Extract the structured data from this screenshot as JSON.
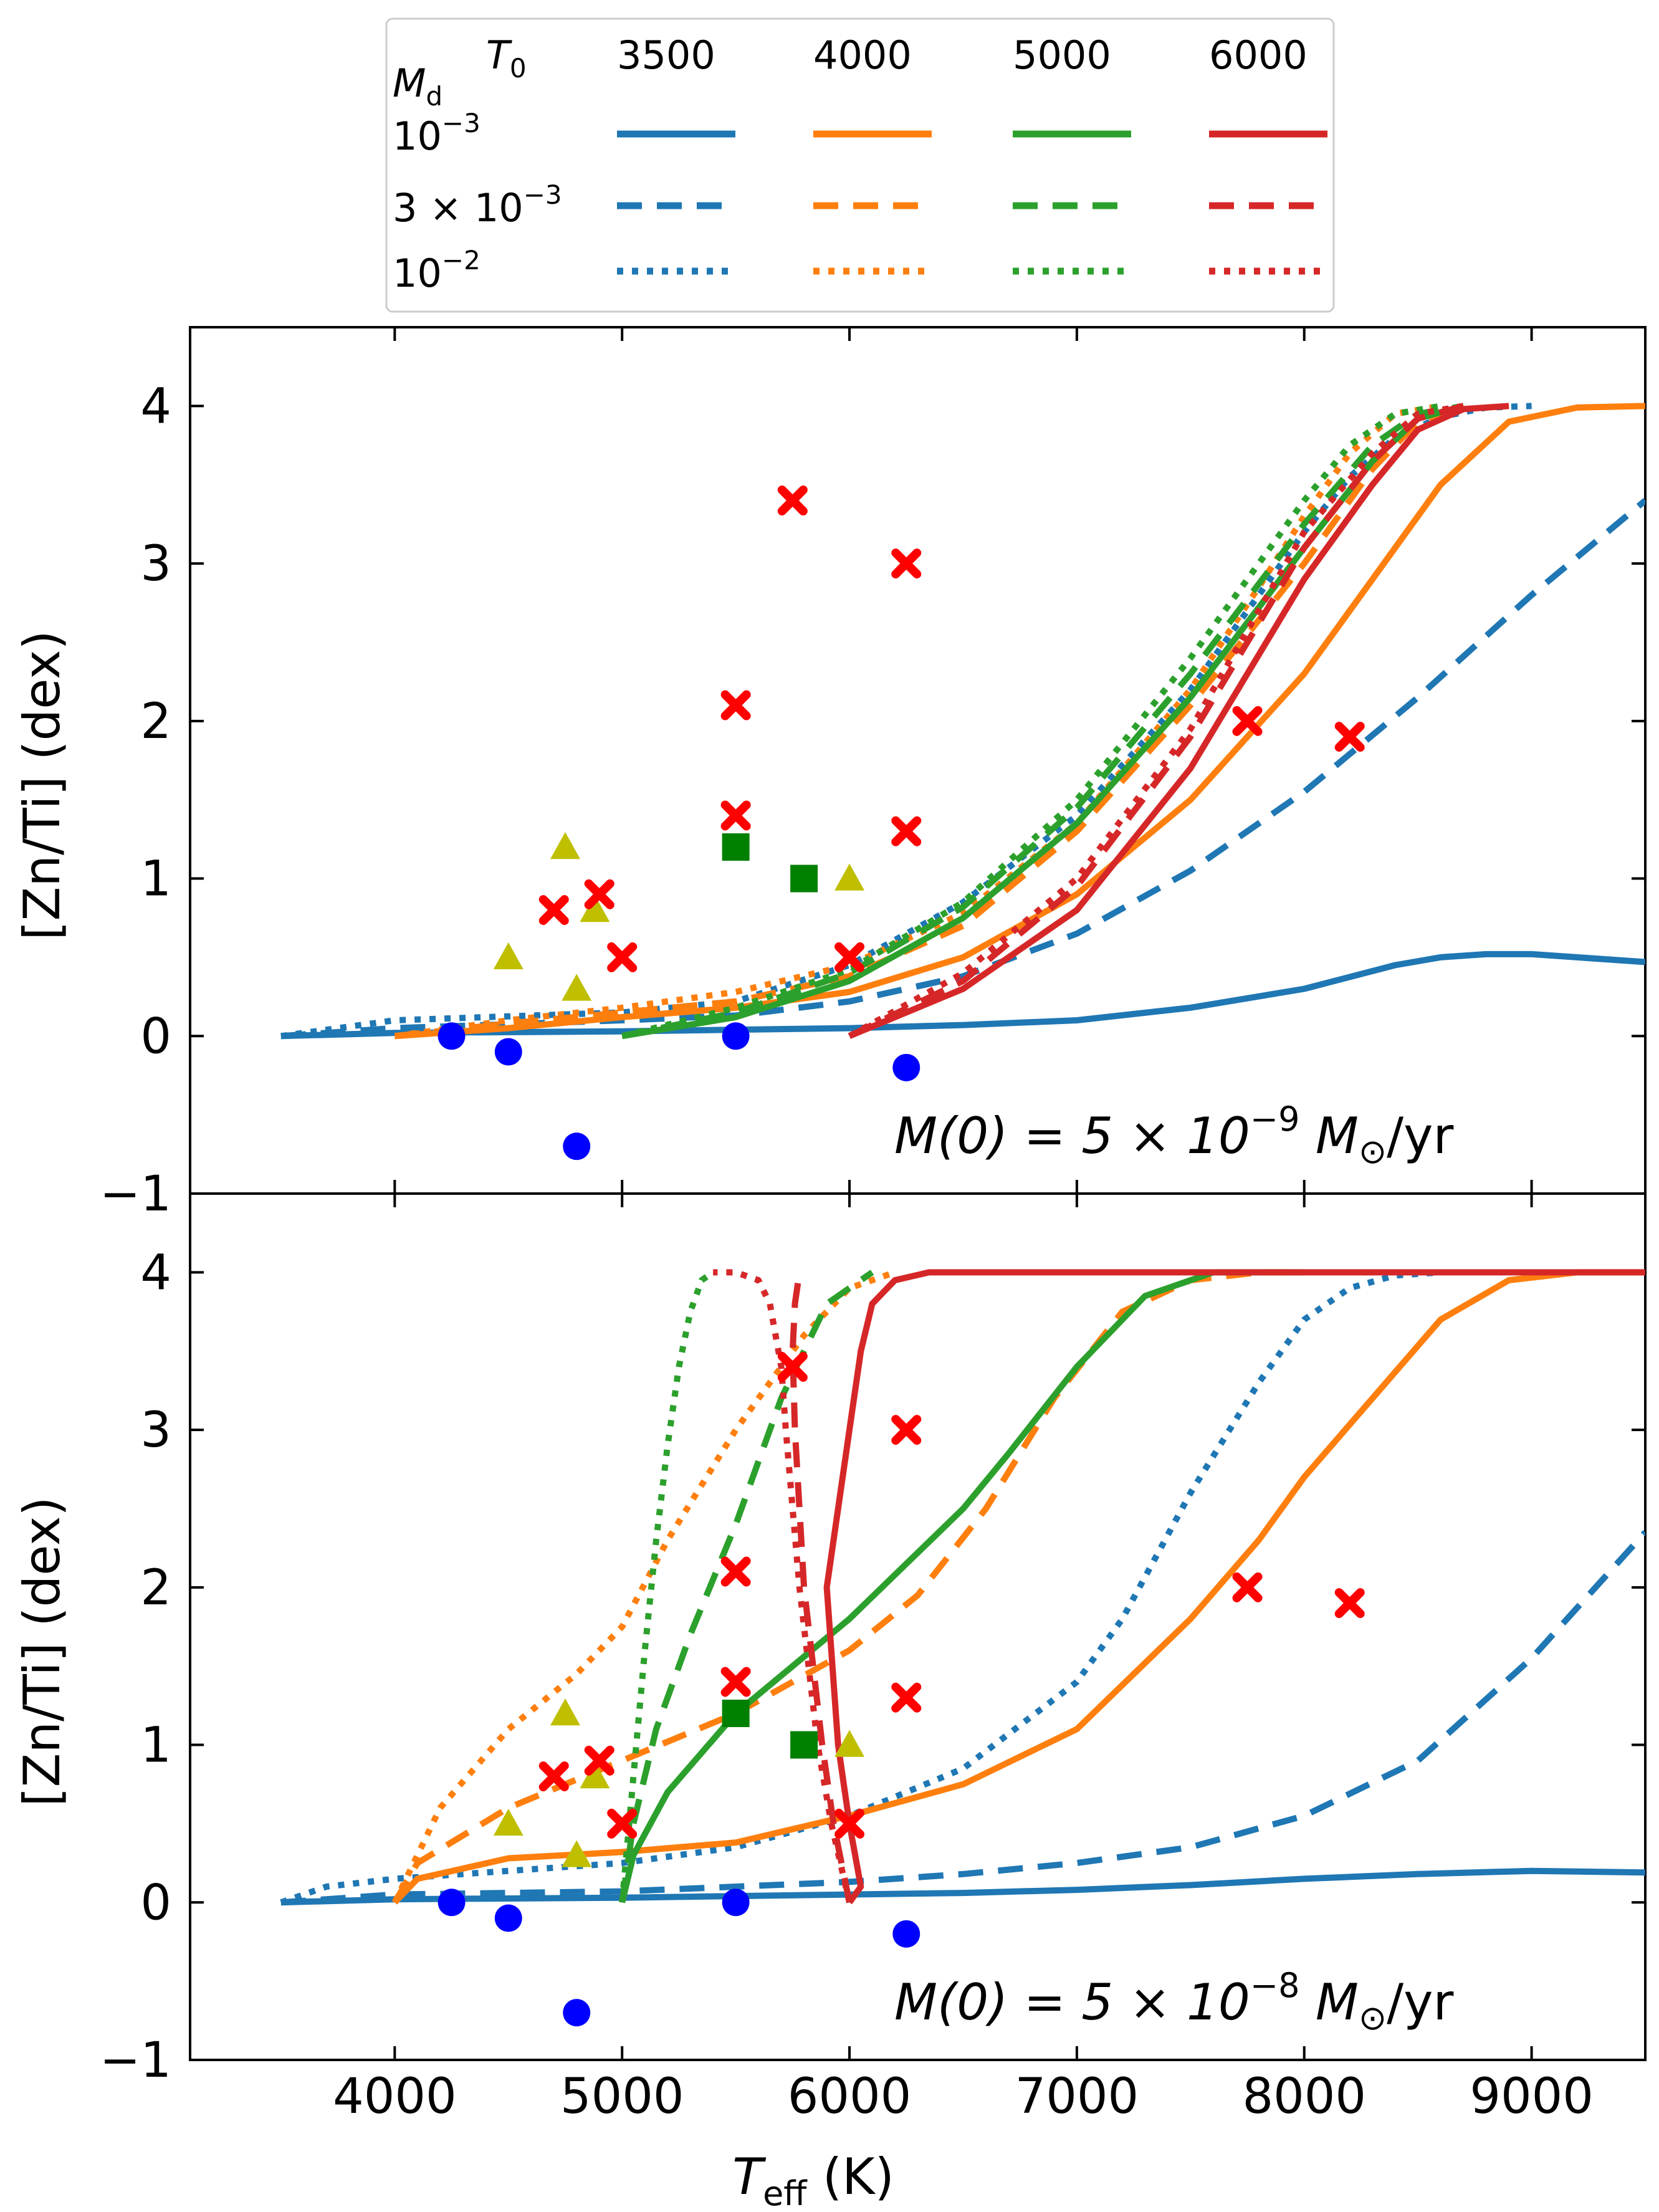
{
  "colors": {
    "T3500": "#1f77b4",
    "T4000": "#ff7f0e",
    "T5000": "#2ca02c",
    "T6000": "#d62728",
    "cross": "#ff0000",
    "circle": "#0000ff",
    "triangle": "#bfbf00",
    "square": "#008000"
  },
  "legend": {
    "md_label": "M",
    "md_sub": "d",
    "t0_label": "T",
    "t0_sub": "0",
    "columns": [
      "3500",
      "4000",
      "5000",
      "6000"
    ],
    "rows": [
      {
        "label_base": "10",
        "label_exp": "−3",
        "prefix": "",
        "style": "solid"
      },
      {
        "label_base": "10",
        "label_exp": "−3",
        "prefix": "3 × ",
        "style": "dashed"
      },
      {
        "label_base": "10",
        "label_exp": "−2",
        "prefix": "",
        "style": "dotted"
      }
    ]
  },
  "chart_data": [
    {
      "type": "line",
      "panel": "top",
      "annotation": {
        "prefix": "M(0) = 5 × 10",
        "exp": "−9",
        "suffix": " M",
        "sub": "⊙",
        "tail": "/yr"
      },
      "xlabel": "T_eff (K)",
      "ylabel": "[Zn/Ti] (dex)",
      "xlim": [
        3100,
        9500
      ],
      "ylim": [
        -1,
        4.5
      ],
      "xticks": [
        4000,
        5000,
        6000,
        7000,
        8000,
        9000
      ],
      "yticks": [
        -1,
        0,
        1,
        2,
        3,
        4
      ],
      "series": [
        {
          "name": "T0=3500 Md=1e-3",
          "T0": "3500",
          "style": "solid",
          "x": [
            3500,
            4000,
            5000,
            6000,
            6500,
            7000,
            7500,
            8000,
            8400,
            8600,
            8800,
            9000,
            9200,
            9500
          ],
          "y": [
            0,
            0.02,
            0.03,
            0.05,
            0.07,
            0.1,
            0.18,
            0.3,
            0.45,
            0.5,
            0.52,
            0.52,
            0.5,
            0.47
          ]
        },
        {
          "name": "T0=3500 Md=3e-3",
          "T0": "3500",
          "style": "dashed",
          "x": [
            3500,
            4000,
            5000,
            5500,
            6000,
            6500,
            7000,
            7500,
            8000,
            8500,
            9000,
            9500
          ],
          "y": [
            0,
            0.05,
            0.1,
            0.13,
            0.22,
            0.38,
            0.65,
            1.05,
            1.55,
            2.15,
            2.8,
            3.4
          ]
        },
        {
          "name": "T0=3500 Md=1e-2",
          "T0": "3500",
          "style": "dotted",
          "x": [
            3500,
            4000,
            5000,
            5500,
            6000,
            6500,
            7000,
            7500,
            7800,
            8000,
            8200,
            8400,
            8600,
            8800,
            9000
          ],
          "y": [
            0,
            0.1,
            0.15,
            0.22,
            0.45,
            0.85,
            1.4,
            2.2,
            2.8,
            3.2,
            3.55,
            3.8,
            3.93,
            3.99,
            4.0
          ]
        },
        {
          "name": "T0=4000 Md=1e-3",
          "T0": "4000",
          "style": "solid",
          "x": [
            4000,
            4500,
            5000,
            5500,
            6000,
            6500,
            7000,
            7500,
            8000,
            8300,
            8600,
            8900,
            9200,
            9500
          ],
          "y": [
            0,
            0.05,
            0.12,
            0.18,
            0.28,
            0.5,
            0.9,
            1.5,
            2.3,
            2.9,
            3.5,
            3.9,
            3.99,
            4.0
          ]
        },
        {
          "name": "T0=4000 Md=3e-3",
          "T0": "4000",
          "style": "dashed",
          "x": [
            4000,
            4500,
            5000,
            5500,
            6000,
            6500,
            7000,
            7500,
            8000,
            8300,
            8500,
            8700
          ],
          "y": [
            0,
            0.08,
            0.15,
            0.22,
            0.38,
            0.7,
            1.3,
            2.1,
            3.0,
            3.6,
            3.9,
            4.0
          ]
        },
        {
          "name": "T0=4000 Md=1e-2",
          "T0": "4000",
          "style": "dotted",
          "x": [
            4000,
            4500,
            5000,
            5500,
            6000,
            6500,
            7000,
            7500,
            7800,
            8000,
            8200,
            8400,
            8600
          ],
          "y": [
            0,
            0.1,
            0.18,
            0.28,
            0.45,
            0.78,
            1.35,
            2.2,
            2.85,
            3.3,
            3.7,
            3.95,
            4.0
          ]
        },
        {
          "name": "T0=5000 Md=1e-3",
          "T0": "5000",
          "style": "solid",
          "x": [
            5000,
            5500,
            6000,
            6500,
            7000,
            7500,
            8000,
            8300,
            8500,
            8700
          ],
          "y": [
            0,
            0.12,
            0.35,
            0.75,
            1.35,
            2.15,
            3.1,
            3.65,
            3.92,
            4.0
          ]
        },
        {
          "name": "T0=5000 Md=3e-3",
          "T0": "5000",
          "style": "dashed",
          "x": [
            5000,
            5500,
            6000,
            6500,
            7000,
            7500,
            8000,
            8300,
            8500,
            8700
          ],
          "y": [
            0,
            0.15,
            0.4,
            0.82,
            1.45,
            2.3,
            3.25,
            3.75,
            3.95,
            4.0
          ]
        },
        {
          "name": "T0=5000 Md=1e-2",
          "T0": "5000",
          "style": "dotted",
          "x": [
            5000,
            5500,
            6000,
            6500,
            7000,
            7500,
            7800,
            8000,
            8200,
            8400,
            8600
          ],
          "y": [
            0,
            0.18,
            0.42,
            0.85,
            1.5,
            2.4,
            3.0,
            3.4,
            3.75,
            3.95,
            4.0
          ]
        },
        {
          "name": "T0=6000 Md=1e-3",
          "T0": "6000",
          "style": "solid",
          "x": [
            6000,
            6500,
            7000,
            7500,
            8000,
            8300,
            8500,
            8700,
            8900
          ],
          "y": [
            0,
            0.3,
            0.8,
            1.7,
            2.9,
            3.5,
            3.85,
            3.98,
            4.0
          ]
        },
        {
          "name": "T0=6000 Md=3e-3",
          "T0": "6000",
          "style": "dashed",
          "x": [
            6000,
            6500,
            7000,
            7500,
            8000,
            8300,
            8500,
            8700
          ],
          "y": [
            0,
            0.35,
            0.95,
            1.9,
            3.1,
            3.65,
            3.92,
            4.0
          ]
        },
        {
          "name": "T0=6000 Md=1e-2",
          "T0": "6000",
          "style": "dotted",
          "x": [
            6000,
            6500,
            7000,
            7500,
            8000,
            8300,
            8500,
            8700
          ],
          "y": [
            0,
            0.4,
            1.0,
            1.95,
            3.2,
            3.7,
            3.95,
            4.0
          ]
        }
      ]
    },
    {
      "type": "line",
      "panel": "bottom",
      "annotation": {
        "prefix": "M(0) = 5 × 10",
        "exp": "−8",
        "suffix": " M",
        "sub": "⊙",
        "tail": "/yr"
      },
      "xlabel": "T_eff (K)",
      "ylabel": "[Zn/Ti] (dex)",
      "xlim": [
        3100,
        9500
      ],
      "ylim": [
        -1,
        4.5
      ],
      "xticks": [
        4000,
        5000,
        6000,
        7000,
        8000,
        9000
      ],
      "yticks": [
        -1,
        0,
        1,
        2,
        3,
        4
      ],
      "series": [
        {
          "name": "T0=3500 Md=1e-3",
          "T0": "3500",
          "style": "solid",
          "x": [
            3500,
            4000,
            5000,
            6000,
            6500,
            7000,
            7500,
            8000,
            8500,
            9000,
            9500
          ],
          "y": [
            0,
            0.02,
            0.03,
            0.05,
            0.06,
            0.08,
            0.11,
            0.15,
            0.18,
            0.2,
            0.19
          ]
        },
        {
          "name": "T0=3500 Md=3e-3",
          "T0": "3500",
          "style": "dashed",
          "x": [
            3500,
            4000,
            5000,
            5500,
            6000,
            6500,
            7000,
            7500,
            8000,
            8500,
            9000,
            9500
          ],
          "y": [
            0,
            0.05,
            0.07,
            0.1,
            0.13,
            0.18,
            0.25,
            0.35,
            0.55,
            0.9,
            1.55,
            2.35
          ]
        },
        {
          "name": "T0=3500 Md=1e-2",
          "T0": "3500",
          "style": "dotted",
          "x": [
            3500,
            3700,
            4000,
            4500,
            5000,
            5500,
            6000,
            6500,
            7000,
            7200,
            7500,
            7800,
            8000,
            8200,
            8400,
            8600
          ],
          "y": [
            0,
            0.1,
            0.15,
            0.2,
            0.25,
            0.35,
            0.55,
            0.85,
            1.4,
            1.8,
            2.6,
            3.3,
            3.7,
            3.9,
            3.98,
            4.0
          ]
        },
        {
          "name": "T0=4000 Md=1e-3",
          "T0": "4000",
          "style": "solid",
          "x": [
            4000,
            4100,
            4500,
            5000,
            5500,
            6000,
            6500,
            7000,
            7500,
            7800,
            8000,
            8300,
            8600,
            8900,
            9200,
            9500
          ],
          "y": [
            0,
            0.15,
            0.28,
            0.32,
            0.38,
            0.55,
            0.75,
            1.1,
            1.8,
            2.3,
            2.7,
            3.2,
            3.7,
            3.95,
            4.0,
            4.0
          ]
        },
        {
          "name": "T0=4000 Md=3e-3",
          "T0": "4000",
          "style": "dashed",
          "x": [
            4000,
            4100,
            4500,
            5000,
            5500,
            6000,
            6300,
            6600,
            6900,
            7200,
            7500,
            7800,
            8000
          ],
          "y": [
            0,
            0.25,
            0.6,
            0.9,
            1.2,
            1.6,
            1.95,
            2.5,
            3.2,
            3.75,
            3.95,
            4.0,
            4.0
          ]
        },
        {
          "name": "T0=4000 Md=1e-2",
          "T0": "4000",
          "style": "dotted",
          "x": [
            4000,
            4200,
            4500,
            4800,
            5000,
            5200,
            5500,
            5800,
            6000,
            6200
          ],
          "y": [
            0,
            0.6,
            1.1,
            1.45,
            1.75,
            2.3,
            3.0,
            3.6,
            3.9,
            4.0
          ]
        },
        {
          "name": "T0=5000 Md=1e-3",
          "T0": "5000",
          "style": "solid",
          "x": [
            5000,
            5050,
            5200,
            5500,
            6000,
            6500,
            6700,
            7000,
            7300,
            7600,
            7900,
            8000
          ],
          "y": [
            0,
            0.3,
            0.7,
            1.2,
            1.8,
            2.5,
            2.85,
            3.4,
            3.85,
            4.0,
            4.0,
            4.0
          ]
        },
        {
          "name": "T0=5000 Md=3e-3",
          "T0": "5000",
          "style": "dashed",
          "x": [
            5000,
            5050,
            5150,
            5300,
            5500,
            5700,
            5900,
            6100
          ],
          "y": [
            0,
            0.5,
            1.1,
            1.7,
            2.4,
            3.2,
            3.8,
            4.0
          ]
        },
        {
          "name": "T0=5000 Md=1e-2",
          "T0": "5000",
          "style": "dotted",
          "x": [
            5000,
            5050,
            5100,
            5150,
            5200,
            5250,
            5300,
            5350,
            5400
          ],
          "y": [
            0,
            0.8,
            1.6,
            2.3,
            2.9,
            3.4,
            3.75,
            3.95,
            4.0
          ]
        },
        {
          "name": "T0=6000 Md=1e-3",
          "T0": "6000",
          "style": "solid",
          "x": [
            6000,
            6050,
            6000,
            5950,
            5900,
            5950,
            6000,
            6050,
            6100,
            6200,
            6350,
            6500,
            7500,
            9500
          ],
          "y": [
            0,
            0.1,
            0.5,
            1.0,
            2.0,
            2.5,
            3.0,
            3.5,
            3.8,
            3.95,
            4.0,
            4.0,
            4.0,
            4.0
          ]
        },
        {
          "name": "T0=6000 Md=3e-3",
          "T0": "6000",
          "style": "dashed",
          "x": [
            6000,
            5930,
            5880,
            5840,
            5800,
            5780,
            5760,
            5750,
            5760,
            5780
          ],
          "y": [
            0,
            0.5,
            1.0,
            1.5,
            2.0,
            2.5,
            3.0,
            3.5,
            3.8,
            4.0
          ]
        },
        {
          "name": "T0=6000 Md=1e-2",
          "T0": "6000",
          "style": "dotted",
          "x": [
            6000,
            5920,
            5860,
            5820,
            5780,
            5750,
            5720,
            5700,
            5650,
            5600,
            5500,
            5400
          ],
          "y": [
            0,
            0.5,
            1.0,
            1.5,
            2.0,
            2.5,
            3.0,
            3.4,
            3.8,
            3.95,
            4.0,
            4.0
          ]
        }
      ]
    }
  ],
  "observations": {
    "crosses": [
      [
        4700,
        0.8
      ],
      [
        4900,
        0.9
      ],
      [
        5000,
        0.5
      ],
      [
        5500,
        2.1
      ],
      [
        5500,
        1.4
      ],
      [
        5750,
        3.4
      ],
      [
        6000,
        0.5
      ],
      [
        6250,
        3.0
      ],
      [
        6250,
        1.3
      ],
      [
        7750,
        2.0
      ],
      [
        8200,
        1.9
      ]
    ],
    "circles": [
      [
        4250,
        0
      ],
      [
        4500,
        -0.1
      ],
      [
        4800,
        -0.7
      ],
      [
        5500,
        0
      ],
      [
        6250,
        -0.2
      ]
    ],
    "triangles": [
      [
        4500,
        0.5
      ],
      [
        4750,
        1.2
      ],
      [
        4800,
        0.3
      ],
      [
        4880,
        0.8
      ],
      [
        6000,
        1.0
      ]
    ],
    "squares": [
      [
        5500,
        1.2
      ],
      [
        5800,
        1.0
      ]
    ]
  }
}
